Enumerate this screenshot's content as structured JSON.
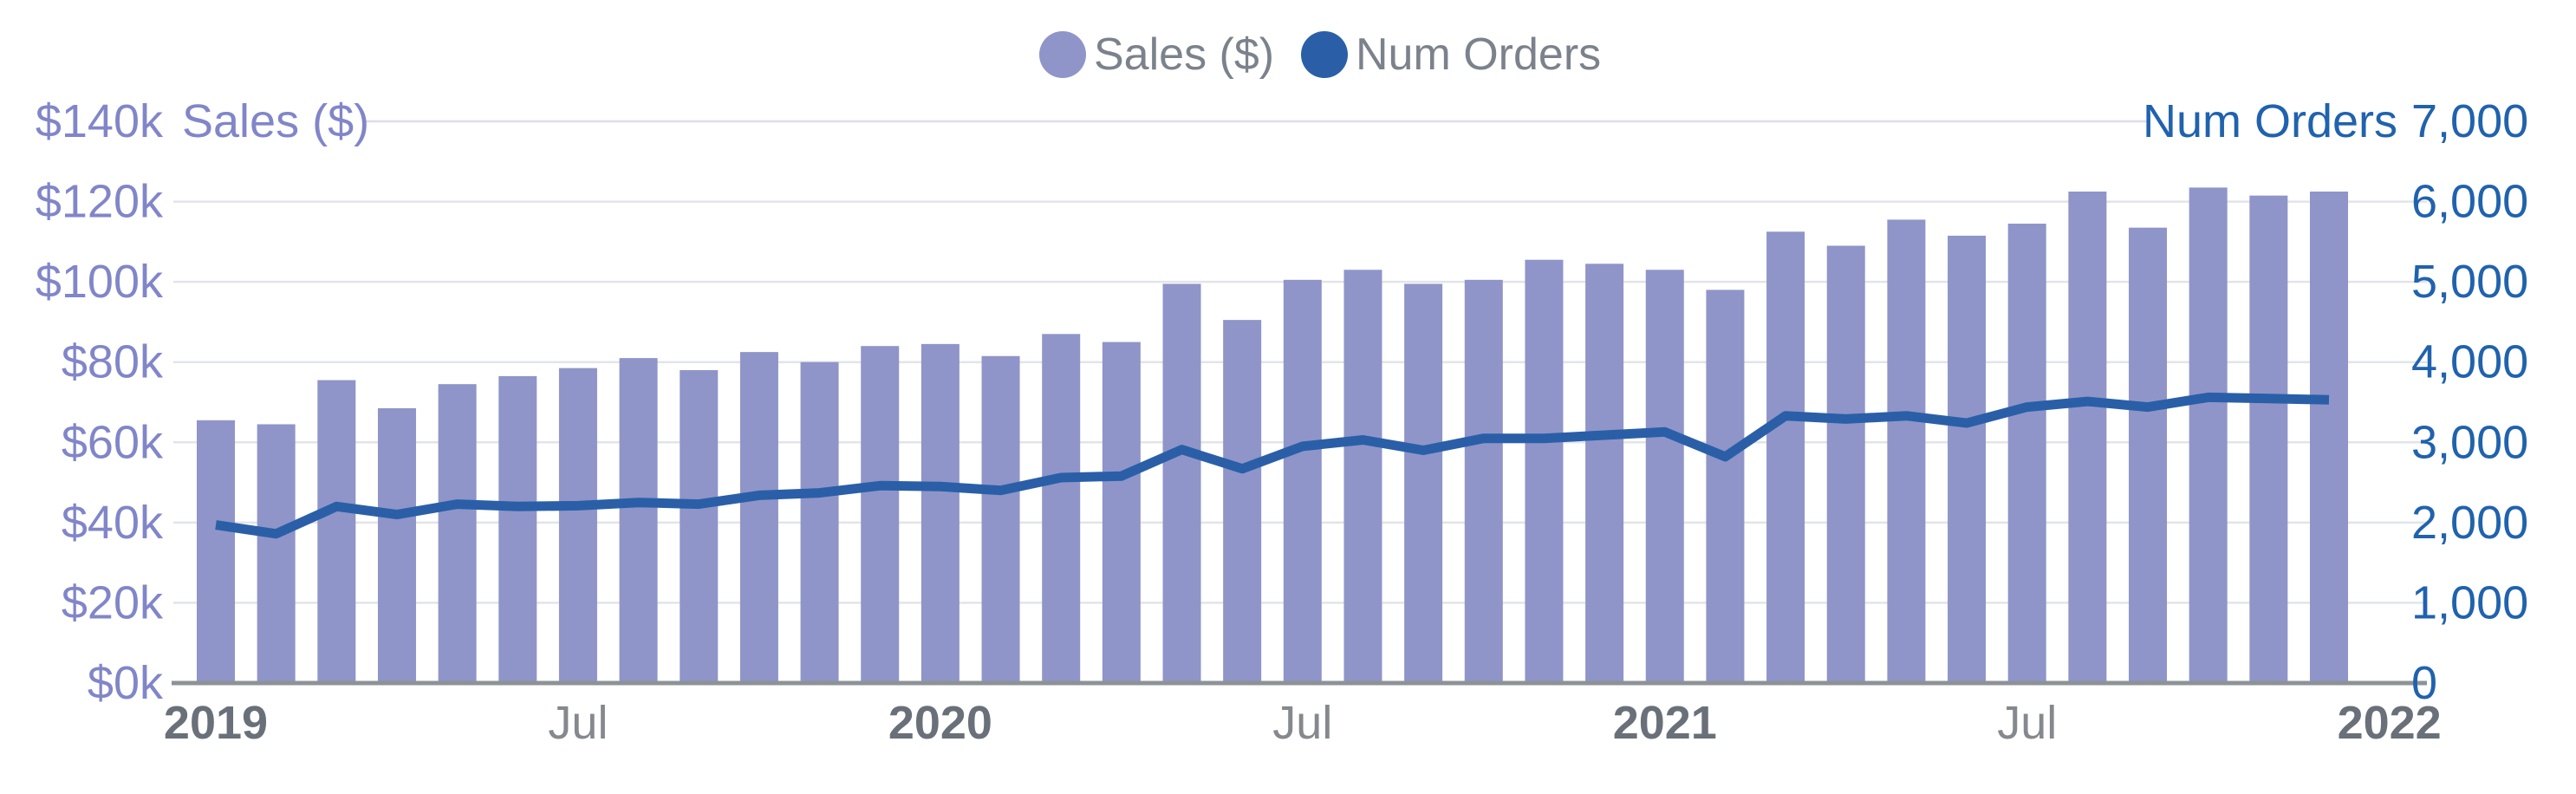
{
  "legend": {
    "items": [
      {
        "label": "Sales ($)",
        "color": "#8f95c8"
      },
      {
        "label": "Num Orders",
        "color": "#2a5fa8"
      }
    ],
    "text_color": "#7b828c"
  },
  "chart_data": {
    "type": "bar",
    "title": "",
    "categories": [
      "Jan 2019",
      "Feb 2019",
      "Mar 2019",
      "Apr 2019",
      "May 2019",
      "Jun 2019",
      "Jul 2019",
      "Aug 2019",
      "Sep 2019",
      "Oct 2019",
      "Nov 2019",
      "Dec 2019",
      "Jan 2020",
      "Feb 2020",
      "Mar 2020",
      "Apr 2020",
      "May 2020",
      "Jun 2020",
      "Jul 2020",
      "Aug 2020",
      "Sep 2020",
      "Oct 2020",
      "Nov 2020",
      "Dec 2020",
      "Jan 2021",
      "Feb 2021",
      "Mar 2021",
      "Apr 2021",
      "May 2021",
      "Jun 2021",
      "Jul 2021",
      "Aug 2021",
      "Sep 2021",
      "Oct 2021",
      "Nov 2021",
      "Dec 2021"
    ],
    "series": [
      {
        "name": "Sales ($)",
        "render": "bar",
        "axis": "left",
        "color": "#8f95c8",
        "values": [
          65500,
          64500,
          75500,
          68500,
          74500,
          76500,
          78500,
          81000,
          78000,
          82500,
          80000,
          84000,
          84500,
          81500,
          87000,
          85000,
          99500,
          90500,
          100500,
          103000,
          99500,
          100500,
          105500,
          104500,
          103000,
          98000,
          112500,
          109000,
          115500,
          111500,
          114500,
          122500,
          113500,
          123500,
          121500,
          122500
        ]
      },
      {
        "name": "Num Orders",
        "render": "line",
        "axis": "right",
        "color": "#2a5fa8",
        "values": [
          1970,
          1860,
          2200,
          2100,
          2230,
          2200,
          2210,
          2250,
          2230,
          2340,
          2370,
          2460,
          2450,
          2400,
          2560,
          2580,
          2910,
          2670,
          2950,
          3030,
          2900,
          3050,
          3050,
          3090,
          3130,
          2820,
          3330,
          3290,
          3330,
          3240,
          3440,
          3510,
          3440,
          3560,
          3545,
          3530
        ]
      }
    ],
    "left_axis": {
      "title": "Sales ($)",
      "range": [
        0,
        140000
      ],
      "tick_step": 20000,
      "tick_labels": [
        "$0k",
        "$20k",
        "$40k",
        "$60k",
        "$80k",
        "$100k",
        "$120k",
        "$140k"
      ],
      "color": "#8186c9"
    },
    "right_axis": {
      "title": "Num Orders",
      "range": [
        0,
        7000
      ],
      "tick_step": 1000,
      "tick_labels": [
        "0",
        "1,000",
        "2,000",
        "3,000",
        "4,000",
        "5,000",
        "6,000",
        "7,000"
      ],
      "color": "#2062ae"
    },
    "x_axis": {
      "tick_indices": [
        0,
        6,
        12,
        18,
        24,
        30,
        36
      ],
      "tick_labels": [
        "2019",
        "Jul",
        "2020",
        "Jul",
        "2021",
        "Jul",
        "2022"
      ],
      "bold_flags": [
        true,
        false,
        true,
        false,
        true,
        false,
        true
      ],
      "year_color": "#697079",
      "month_color": "#85898e"
    },
    "grid": {
      "show": true,
      "color": "#e2e4ea",
      "top_line_color": "#dcdee8",
      "baseline_color": "#8d9297"
    },
    "legend_position": "top-center"
  }
}
